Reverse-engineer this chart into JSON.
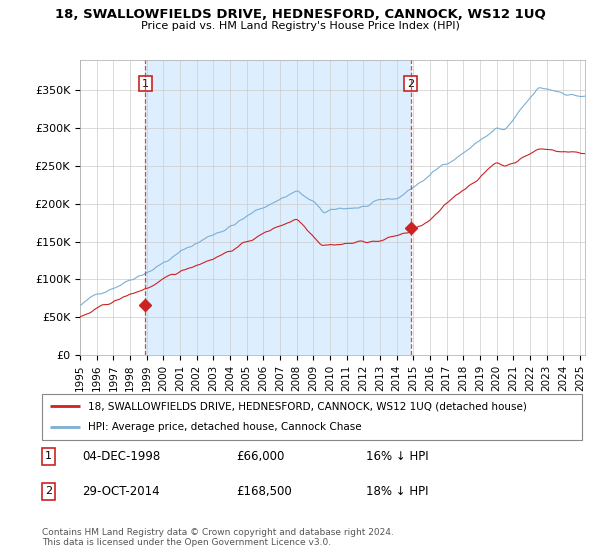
{
  "title": "18, SWALLOWFIELDS DRIVE, HEDNESFORD, CANNOCK, WS12 1UQ",
  "subtitle": "Price paid vs. HM Land Registry's House Price Index (HPI)",
  "ylim": [
    0,
    390000
  ],
  "yticks": [
    0,
    50000,
    100000,
    150000,
    200000,
    250000,
    300000,
    350000
  ],
  "ytick_labels": [
    "£0",
    "£50K",
    "£100K",
    "£150K",
    "£200K",
    "£250K",
    "£300K",
    "£350K"
  ],
  "hpi_color": "#7bafd4",
  "price_color": "#cc2222",
  "shade_color": "#ddeeff",
  "annotation1": {
    "label": "1",
    "date": "04-DEC-1998",
    "price": "£66,000",
    "pct": "16% ↓ HPI"
  },
  "annotation2": {
    "label": "2",
    "date": "29-OCT-2014",
    "price": "£168,500",
    "pct": "18% ↓ HPI"
  },
  "legend_property": "18, SWALLOWFIELDS DRIVE, HEDNESFORD, CANNOCK, WS12 1UQ (detached house)",
  "legend_hpi": "HPI: Average price, detached house, Cannock Chase",
  "footer": "Contains HM Land Registry data © Crown copyright and database right 2024.\nThis data is licensed under the Open Government Licence v3.0.",
  "background_color": "#ffffff",
  "grid_color": "#cccccc",
  "m1_x": 1998.92,
  "m1_y": 66000,
  "m2_x": 2014.83,
  "m2_y": 168500,
  "x_start": 1995.0,
  "x_end": 2025.3,
  "xtick_years": [
    1995,
    1996,
    1997,
    1998,
    1999,
    2000,
    2001,
    2002,
    2003,
    2004,
    2005,
    2006,
    2007,
    2008,
    2009,
    2010,
    2011,
    2012,
    2013,
    2014,
    2015,
    2016,
    2017,
    2018,
    2019,
    2020,
    2021,
    2022,
    2023,
    2024,
    2025
  ]
}
